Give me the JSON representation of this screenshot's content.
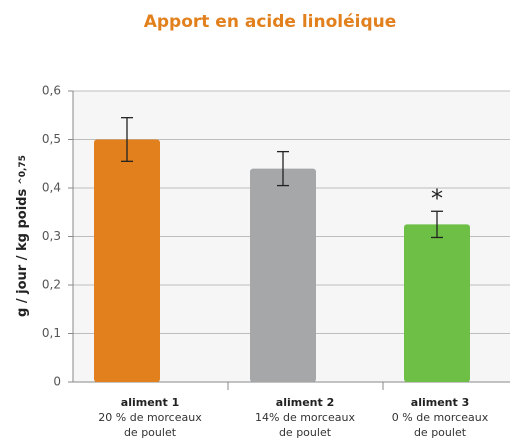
{
  "chart_data": {
    "type": "bar",
    "title": "Apport en acide linoléique",
    "ylabel": "g / jour / kg poids",
    "ylabel_exponent": "^0,75",
    "categories": [
      "aliment 1",
      "aliment 2",
      "aliment 3"
    ],
    "category_descriptions": [
      [
        "20 % de morceaux",
        "de poulet"
      ],
      [
        "14% de morceaux",
        "de poulet"
      ],
      [
        "0 % de morceaux",
        "de poulet"
      ]
    ],
    "values": [
      0.5,
      0.44,
      0.325
    ],
    "errors": [
      0.045,
      0.035,
      0.027
    ],
    "colors": [
      "#e2801e",
      "#a6a7a9",
      "#6ebf45"
    ],
    "annotations": [
      {
        "text": "*",
        "category": "aliment 3"
      }
    ],
    "ylim": [
      0,
      0.6
    ],
    "yticks": [
      0,
      {
        "value": 0.1,
        "label": "0,1"
      },
      {
        "value": 0.2,
        "label": "0,2"
      },
      {
        "value": 0.3,
        "label": "0,3"
      },
      {
        "value": 0.4,
        "label": "0,4"
      },
      {
        "value": 0.5,
        "label": "0,5"
      },
      {
        "value": 0.6,
        "label": "0,6"
      }
    ],
    "grid": true
  }
}
